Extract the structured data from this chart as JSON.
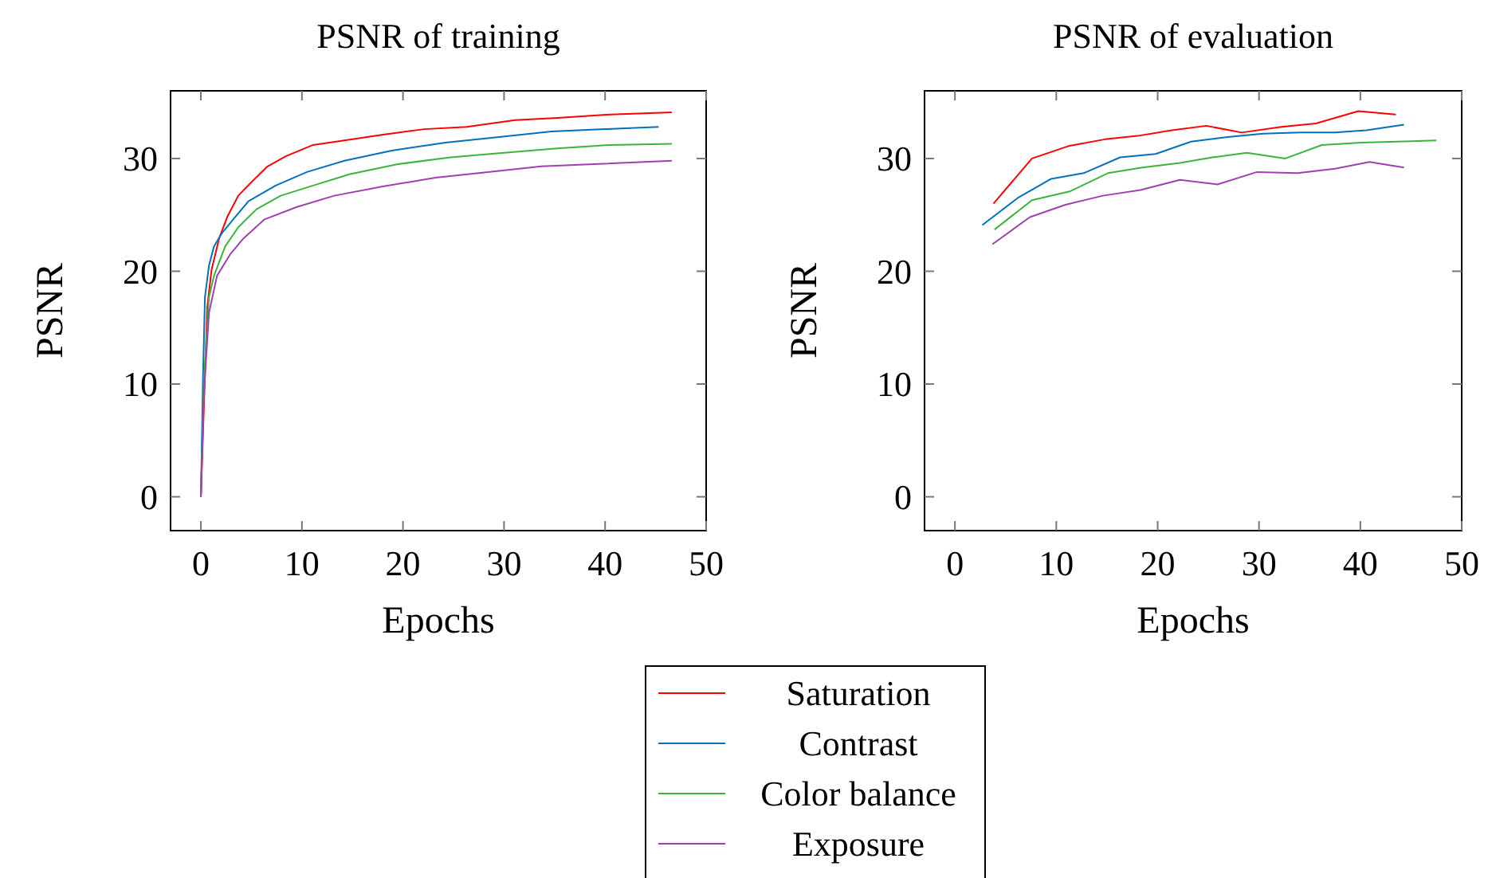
{
  "chart_data": [
    {
      "type": "line",
      "title": "PSNR of training",
      "xlabel": "Epochs",
      "ylabel": "PSNR",
      "xlim": [
        -3,
        50
      ],
      "ylim": [
        -3,
        36
      ],
      "xticks": [
        0,
        10,
        20,
        30,
        40,
        50
      ],
      "yticks": [
        0,
        10,
        20,
        30
      ],
      "grid": false,
      "legend": "bottom",
      "series": [
        {
          "name": "Saturation",
          "color": "#ff0000",
          "x": [
            0,
            0.63,
            1.05,
            1.8,
            2.6,
            3.7,
            5,
            6.6,
            8.4,
            11.1,
            14.2,
            17.9,
            22.1,
            26.3,
            31.1,
            35.3,
            40.5,
            46.6
          ],
          "values": [
            0,
            16.8,
            20.1,
            22.9,
            24.8,
            26.7,
            27.9,
            29.3,
            30.2,
            31.2,
            31.6,
            32.1,
            32.6,
            32.8,
            33.4,
            33.6,
            33.9,
            34.1
          ]
        },
        {
          "name": "Contrast",
          "color": "#0072bd",
          "x": [
            0,
            0.2,
            0.4,
            0.8,
            1.3,
            2.1,
            3.2,
            4.7,
            7.4,
            10.5,
            14.2,
            18.9,
            24.2,
            29.5,
            34.7,
            40,
            45.3
          ],
          "values": [
            0,
            10.2,
            17.7,
            20.5,
            22.2,
            23.4,
            24.6,
            26.2,
            27.6,
            28.8,
            29.8,
            30.7,
            31.4,
            31.9,
            32.4,
            32.6,
            32.8
          ]
        },
        {
          "name": "Color balance",
          "color": "#3cb43c",
          "x": [
            0,
            0.3,
            0.8,
            1.3,
            2.4,
            3.7,
            5.5,
            7.9,
            11.1,
            14.7,
            19.5,
            24.7,
            30,
            35.3,
            40.5,
            46.6
          ],
          "values": [
            0,
            10.2,
            17.7,
            19.6,
            22.2,
            23.9,
            25.5,
            26.7,
            27.6,
            28.6,
            29.5,
            30.1,
            30.5,
            30.9,
            31.2,
            31.3
          ]
        },
        {
          "name": "Exposure",
          "color": "#a040b0",
          "x": [
            0,
            0.3,
            0.8,
            1.6,
            2.9,
            4.2,
            6.3,
            9.5,
            13.2,
            17.9,
            23.2,
            28.4,
            33.7,
            38.9,
            46.6
          ],
          "values": [
            0,
            9.2,
            16.3,
            19.6,
            21.5,
            22.9,
            24.6,
            25.7,
            26.7,
            27.5,
            28.3,
            28.8,
            29.3,
            29.5,
            29.8
          ]
        }
      ]
    },
    {
      "type": "line",
      "title": "PSNR of evaluation",
      "xlabel": "Epochs",
      "ylabel": "PSNR",
      "xlim": [
        -3,
        50
      ],
      "ylim": [
        -3,
        36
      ],
      "xticks": [
        0,
        10,
        20,
        30,
        40,
        50
      ],
      "yticks": [
        0,
        10,
        20,
        30
      ],
      "grid": false,
      "series": [
        {
          "color": "#ff0000",
          "x": [
            3.8,
            7.6,
            11.2,
            14.8,
            18,
            21.4,
            24.8,
            28.3,
            32.2,
            35.6,
            39.8,
            43.5
          ],
          "values": [
            26.0,
            30.0,
            31.1,
            31.7,
            32.0,
            32.5,
            32.9,
            32.3,
            32.8,
            33.1,
            34.2,
            33.9
          ]
        },
        {
          "color": "#0072bd",
          "x": [
            2.7,
            6.2,
            9.5,
            12.7,
            16.3,
            19.8,
            23.3,
            26.9,
            30.4,
            34.1,
            37.5,
            40.6,
            44.3
          ],
          "values": [
            24.1,
            26.5,
            28.2,
            28.7,
            30.1,
            30.4,
            31.5,
            31.9,
            32.2,
            32.3,
            32.3,
            32.5,
            33.0
          ]
        },
        {
          "color": "#3cb43c",
          "x": [
            3.9,
            7.6,
            11.4,
            15.1,
            18.5,
            22.2,
            25.4,
            28.8,
            32.6,
            36.2,
            40.1,
            47.5
          ],
          "values": [
            23.7,
            26.3,
            27.1,
            28.7,
            29.2,
            29.6,
            30.1,
            30.5,
            30.0,
            31.2,
            31.4,
            31.6
          ]
        },
        {
          "color": "#a040b0",
          "x": [
            3.7,
            7.4,
            10.9,
            14.6,
            18.3,
            22.2,
            25.9,
            29.8,
            33.8,
            37.5,
            40.9,
            44.3
          ],
          "values": [
            22.4,
            24.8,
            25.9,
            26.7,
            27.2,
            28.1,
            27.7,
            28.8,
            28.7,
            29.1,
            29.7,
            29.2
          ]
        }
      ]
    }
  ]
}
